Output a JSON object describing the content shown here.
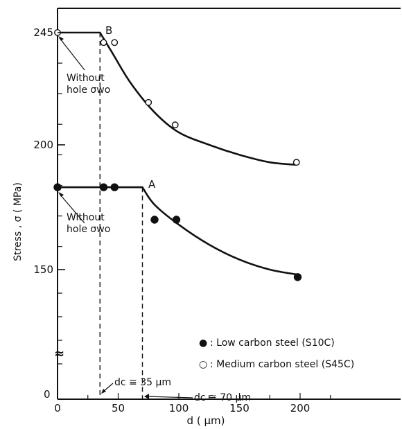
{
  "chart_data": {
    "type": "scatter",
    "title": "",
    "xlabel": "d ( μm)",
    "ylabel": "Stress , σ ( MPa)",
    "xlim": [
      0,
      200
    ],
    "ylim": [
      150,
      245
    ],
    "axis_break": "≈",
    "x_ticks": [
      0,
      50,
      100,
      150,
      200
    ],
    "y_ticks": [
      245,
      200,
      150
    ],
    "y_zero_label": "0",
    "grid": false,
    "legend_position": "lower-right",
    "series": [
      {
        "name": "Low carbon steel (S10C)",
        "marker": "filled-circle",
        "points": [
          [
            0,
            183
          ],
          [
            38,
            183
          ],
          [
            47,
            183
          ],
          [
            80,
            170
          ],
          [
            98,
            170
          ],
          [
            198,
            147
          ]
        ],
        "curve": [
          [
            0,
            183
          ],
          [
            70,
            183
          ],
          [
            80,
            176
          ],
          [
            100,
            168
          ],
          [
            125,
            160
          ],
          [
            150,
            154
          ],
          [
            175,
            150
          ],
          [
            198,
            148
          ]
        ]
      },
      {
        "name": "Medium carbon steel (S45C)",
        "marker": "open-circle",
        "points": [
          [
            0,
            245
          ],
          [
            38,
            241
          ],
          [
            47,
            241
          ],
          [
            75,
            217
          ],
          [
            97,
            208
          ],
          [
            197,
            193
          ]
        ],
        "curve": [
          [
            0,
            245
          ],
          [
            35,
            245
          ],
          [
            45,
            237
          ],
          [
            60,
            225
          ],
          [
            80,
            213
          ],
          [
            100,
            205
          ],
          [
            125,
            200
          ],
          [
            150,
            196
          ],
          [
            175,
            193
          ],
          [
            197,
            192
          ]
        ]
      }
    ],
    "annotations": {
      "point_a": "A",
      "point_b": "B",
      "without_hole_top": [
        "Without",
        "hole σwo"
      ],
      "without_hole_bottom": [
        "Without",
        "hole σwo"
      ],
      "dc_35": "dc ≅ 35 μm",
      "dc_70": "dc ≅ 70 μm",
      "dc_lines": [
        35,
        70
      ]
    },
    "legend": [
      {
        "symbol": "●",
        "label": ":    Low carbon steel (S10C)"
      },
      {
        "symbol": "○",
        "label": ": Medium carbon steel (S45C)"
      }
    ]
  }
}
